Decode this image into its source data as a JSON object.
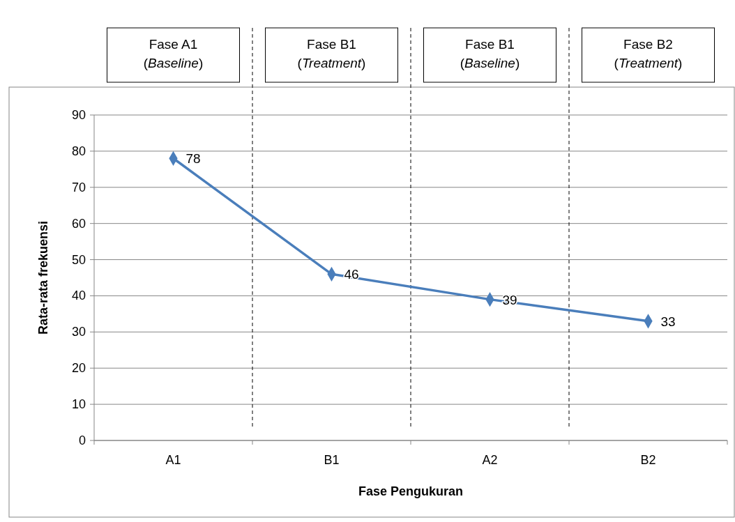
{
  "chart_data": {
    "type": "line",
    "xlabel": "Fase Pengukuran",
    "ylabel": "Rata-rata frekuensi",
    "categories": [
      "A1",
      "B1",
      "A2",
      "B2"
    ],
    "ylim": [
      0,
      90
    ],
    "yticks": [
      0,
      10,
      20,
      30,
      40,
      50,
      60,
      70,
      80,
      90
    ],
    "series": [
      {
        "color": "#4a7ebb",
        "values": [
          78,
          46,
          39,
          33
        ]
      }
    ],
    "marker": "diamond",
    "line_style": "solid",
    "data_labels": true,
    "grid": "y",
    "annotations": [
      "Fase A1\n(Baseline)",
      "Fase B1\n(Treatment)",
      "Fase B1\n(Baseline)",
      "Fase B2\n(Treatment)"
    ]
  }
}
